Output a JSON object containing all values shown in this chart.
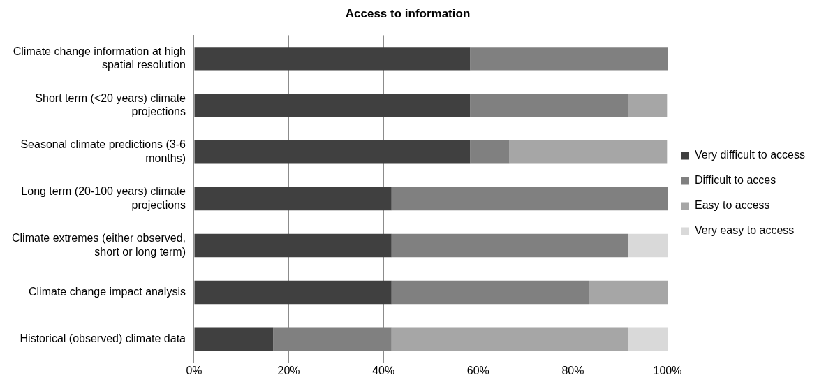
{
  "chart_data": {
    "type": "bar",
    "title": "Access to information",
    "orientation": "horizontal",
    "stacked": true,
    "categories": [
      "Climate change information at high spatial resolution",
      "Short term (<20 years) climate projections",
      "Seasonal climate predictions (3-6 months)",
      "Long term (20-100 years) climate projections",
      "Climate extremes (either observed, short or long term)",
      "Climate change impact analysis",
      "Historical (observed) climate data"
    ],
    "series": [
      {
        "name": "Very difficult to access",
        "color": "#404040",
        "values": [
          58.3,
          58.3,
          58.3,
          41.7,
          41.7,
          41.7,
          16.7
        ]
      },
      {
        "name": "Difficult to acces",
        "color": "#808080",
        "values": [
          41.7,
          33.3,
          8.3,
          58.3,
          50,
          41.7,
          25
        ]
      },
      {
        "name": "Easy to access",
        "color": "#a6a6a6",
        "values": [
          0,
          8.3,
          33.3,
          0,
          0,
          16.7,
          50
        ]
      },
      {
        "name": "Very easy to access",
        "color": "#d9d9d9",
        "values": [
          0,
          0,
          0,
          0,
          8.3,
          0,
          8.3
        ]
      }
    ],
    "xlim": [
      0,
      100
    ],
    "xticks": [
      {
        "value": 0,
        "label": "0%"
      },
      {
        "value": 20,
        "label": "20%"
      },
      {
        "value": 40,
        "label": "40%"
      },
      {
        "value": 60,
        "label": "60%"
      },
      {
        "value": 80,
        "label": "80%"
      },
      {
        "value": 100,
        "label": "100%"
      }
    ],
    "grid": "x",
    "legend": "right"
  }
}
